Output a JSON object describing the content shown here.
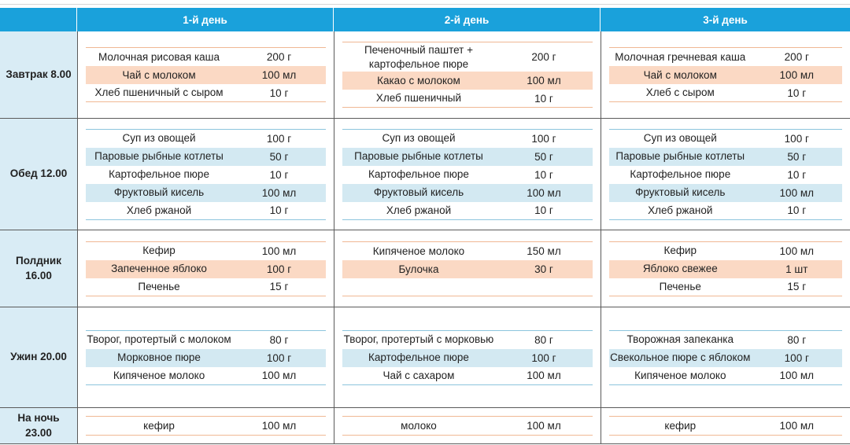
{
  "headers": [
    "1-й день",
    "2-й день",
    "3-й день"
  ],
  "meals": [
    {
      "name": "Завтрак 8.00",
      "days": [
        [
          {
            "dish": "Молочная рисовая каша",
            "amount": "200 г"
          },
          {
            "dish": "Чай с молоком",
            "amount": "100 мл"
          },
          {
            "dish": "Хлеб пшеничный с сыром",
            "amount": "10 г"
          }
        ],
        [
          {
            "dish": "Печеночный паштет + картофельное пюре",
            "amount": "200 г"
          },
          {
            "dish": "Какао с молоком",
            "amount": "100 мл"
          },
          {
            "dish": "Хлеб пшеничный",
            "amount": "10 г"
          }
        ],
        [
          {
            "dish": "Молочная гречневая каша",
            "amount": "200 г"
          },
          {
            "dish": "Чай с молоком",
            "amount": "100 мл"
          },
          {
            "dish": "Хлеб с сыром",
            "amount": "10 г"
          }
        ]
      ]
    },
    {
      "name": "Обед 12.00",
      "days": [
        [
          {
            "dish": "Суп из овощей",
            "amount": "100 г"
          },
          {
            "dish": "Паровые рыбные котлеты",
            "amount": "50 г"
          },
          {
            "dish": "Картофельное пюре",
            "amount": "10 г"
          },
          {
            "dish": "Фруктовый кисель",
            "amount": "100 мл"
          },
          {
            "dish": "Хлеб ржаной",
            "amount": "10 г"
          }
        ],
        [
          {
            "dish": "Суп из овощей",
            "amount": "100 г"
          },
          {
            "dish": "Паровые рыбные котлеты",
            "amount": "50 г"
          },
          {
            "dish": "Картофельное пюре",
            "amount": "10 г"
          },
          {
            "dish": "Фруктовый кисель",
            "amount": "100 мл"
          },
          {
            "dish": "Хлеб ржаной",
            "amount": "10 г"
          }
        ],
        [
          {
            "dish": "Суп из овощей",
            "amount": "100 г"
          },
          {
            "dish": "Паровые рыбные котлеты",
            "amount": "50 г"
          },
          {
            "dish": "Картофельное пюре",
            "amount": "10 г"
          },
          {
            "dish": "Фруктовый кисель",
            "amount": "100 мл"
          },
          {
            "dish": "Хлеб ржаной",
            "amount": "10 г"
          }
        ]
      ]
    },
    {
      "name": "Полдник 16.00",
      "days": [
        [
          {
            "dish": "Кефир",
            "amount": "100 мл"
          },
          {
            "dish": "Запеченное яблоко",
            "amount": "100 г"
          },
          {
            "dish": "Печенье",
            "amount": "15 г"
          }
        ],
        [
          {
            "dish": "Кипяченое молоко",
            "amount": "150 мл"
          },
          {
            "dish": "Булочка",
            "amount": "30 г"
          }
        ],
        [
          {
            "dish": "Кефир",
            "amount": "100 мл"
          },
          {
            "dish": "Яблоко свежее",
            "amount": "1 шт"
          },
          {
            "dish": "Печенье",
            "amount": "15 г"
          }
        ]
      ]
    },
    {
      "name": "Ужин 20.00",
      "days": [
        [
          {
            "dish": "Творог, протертый с молоком",
            "amount": "80 г"
          },
          {
            "dish": "Морковное пюре",
            "amount": "100 г"
          },
          {
            "dish": "Кипяченое молоко",
            "amount": "100 мл"
          }
        ],
        [
          {
            "dish": "Творог, протертый с морковью",
            "amount": "80 г"
          },
          {
            "dish": "Картофельное пюре",
            "amount": "100 г"
          },
          {
            "dish": "Чай с сахаром",
            "amount": "100 мл"
          }
        ],
        [
          {
            "dish": "Творожная запеканка",
            "amount": "80 г"
          },
          {
            "dish": "Свекольное пюре с яблоком",
            "amount": "100 г"
          },
          {
            "dish": "Кипяченое молоко",
            "amount": "100 мл"
          }
        ]
      ]
    },
    {
      "name": "На ночь 23.00",
      "days": [
        [
          {
            "dish": "кефир",
            "amount": "100 мл"
          }
        ],
        [
          {
            "dish": "молоко",
            "amount": "100 мл"
          }
        ],
        [
          {
            "dish": "кефир",
            "amount": "100 мл"
          }
        ]
      ]
    }
  ],
  "colors": {
    "header": "#1aa1db",
    "meal_bg": "#d9ecf5",
    "orange_row": "#fbd9c4",
    "blue_row": "#d3e9f2"
  }
}
